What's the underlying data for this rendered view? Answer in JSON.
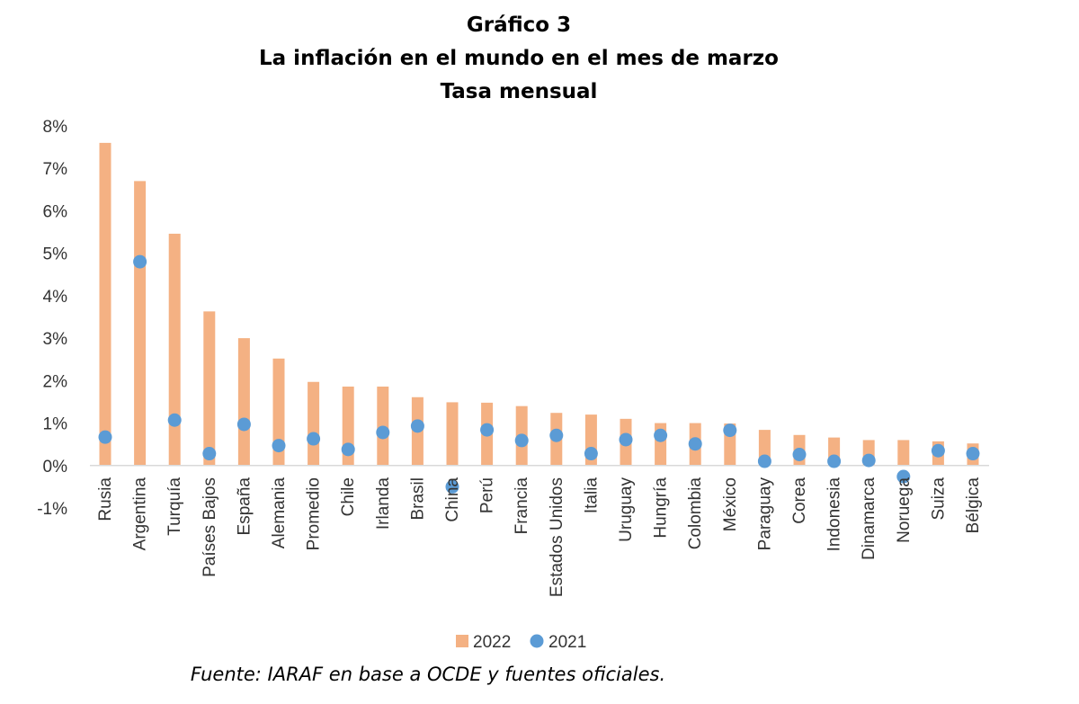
{
  "chart_data": {
    "type": "bar",
    "title_lines": [
      "Gráfico 3",
      "La inflación en el mundo en el mes de marzo",
      "Tasa mensual"
    ],
    "categories": [
      "Rusia",
      "Argentina",
      "Turquía",
      "Países Bajos",
      "España",
      "Alemania",
      "Promedio",
      "Chile",
      "Irlanda",
      "Brasil",
      "China",
      "Perú",
      "Francia",
      "Estados Unidos",
      "Italia",
      "Uruguay",
      "Hungría",
      "Colombia",
      "México",
      "Paraguay",
      "Corea",
      "Indonesia",
      "Dinamarca",
      "Noruega",
      "Suiza",
      "Bélgica"
    ],
    "series": [
      {
        "name": "2022",
        "kind": "bar",
        "color": "#F4B183",
        "values": [
          7.6,
          6.7,
          5.46,
          3.63,
          3.0,
          2.52,
          1.97,
          1.86,
          1.86,
          1.61,
          1.49,
          1.48,
          1.4,
          1.24,
          1.2,
          1.1,
          1.0,
          1.0,
          0.99,
          0.84,
          0.72,
          0.66,
          0.6,
          0.6,
          0.57,
          0.52
        ]
      },
      {
        "name": "2021",
        "kind": "marker",
        "color": "#5B9BD5",
        "values": [
          0.67,
          4.8,
          1.07,
          0.28,
          0.97,
          0.47,
          0.63,
          0.38,
          0.78,
          0.93,
          -0.5,
          0.84,
          0.59,
          0.71,
          0.28,
          0.61,
          0.71,
          0.51,
          0.83,
          0.1,
          0.26,
          0.1,
          0.12,
          -0.26,
          0.35,
          0.28
        ]
      }
    ],
    "ylim": [
      -1,
      8
    ],
    "y_ticks": [
      8,
      7,
      6,
      5,
      4,
      3,
      2,
      1,
      0,
      -1
    ],
    "y_tick_labels": [
      "8%",
      "7%",
      "6%",
      "5%",
      "4%",
      "3%",
      "2%",
      "1%",
      "0%",
      "-1%"
    ],
    "grid": false,
    "legend_position": "bottom"
  },
  "source_note": "Fuente: IARAF en base a OCDE y fuentes oficiales."
}
